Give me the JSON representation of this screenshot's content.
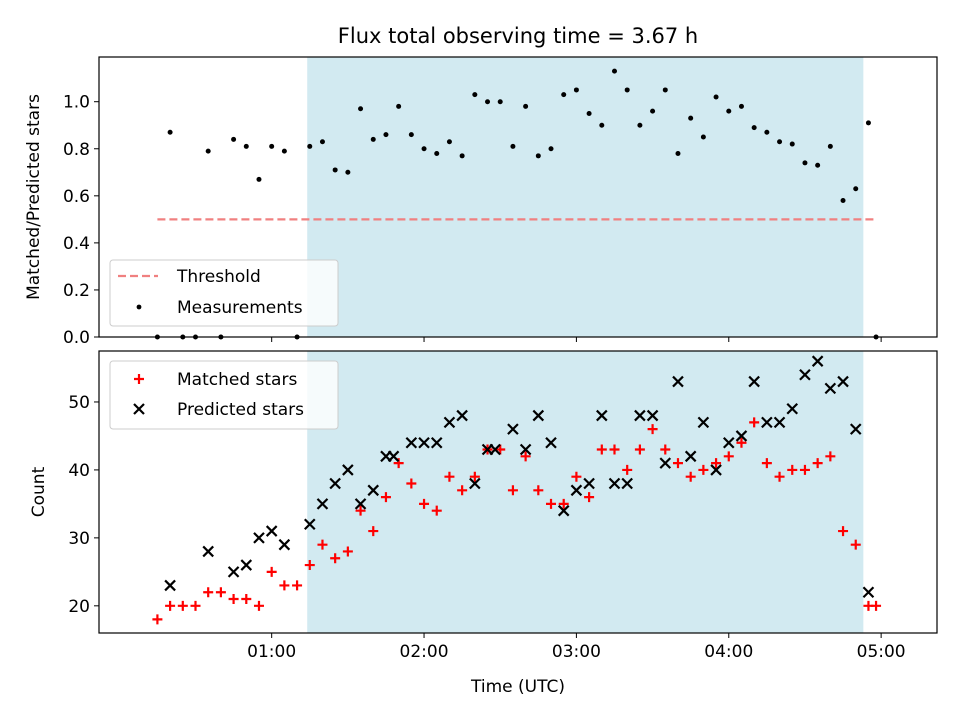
{
  "title": "Flux total observing time = 3.67 h",
  "colors": {
    "shade": "#add8e6",
    "threshold": "#f08080",
    "matched": "#ff0000",
    "predicted": "#000000"
  },
  "chart_data": [
    {
      "type": "scatter",
      "ylabel": "Matched/Predicted stars",
      "ylim": [
        0,
        1.19
      ],
      "yticks": [
        "0.0",
        "0.2",
        "0.4",
        "0.6",
        "0.8",
        "1.0"
      ],
      "legend": {
        "placement": "lower-left",
        "entries": [
          "Threshold",
          "Measurements"
        ]
      },
      "threshold": {
        "name": "Threshold",
        "value": 0.5,
        "x_range": [
          "00:15",
          "04:57"
        ]
      },
      "observing_window": [
        "01:14",
        "04:53"
      ],
      "series": [
        {
          "name": "Measurements",
          "x": [
            "00:15",
            "00:20",
            "00:25",
            "00:30",
            "00:35",
            "00:40",
            "00:45",
            "00:50",
            "00:55",
            "01:00",
            "01:05",
            "01:10",
            "01:15",
            "01:20",
            "01:25",
            "01:30",
            "01:35",
            "01:40",
            "01:45",
            "01:50",
            "01:55",
            "02:00",
            "02:05",
            "02:10",
            "02:15",
            "02:20",
            "02:25",
            "02:30",
            "02:35",
            "02:40",
            "02:45",
            "02:50",
            "02:55",
            "03:00",
            "03:05",
            "03:10",
            "03:15",
            "03:20",
            "03:25",
            "03:30",
            "03:35",
            "03:40",
            "03:45",
            "03:50",
            "03:55",
            "04:00",
            "04:05",
            "04:10",
            "04:15",
            "04:20",
            "04:25",
            "04:30",
            "04:35",
            "04:40",
            "04:45",
            "04:50",
            "04:55",
            "04:58"
          ],
          "y": [
            0.0,
            0.87,
            0.0,
            0.0,
            0.79,
            0.0,
            0.84,
            0.81,
            0.67,
            0.81,
            0.79,
            0.0,
            0.81,
            0.83,
            0.71,
            0.7,
            0.97,
            0.84,
            0.86,
            0.98,
            0.86,
            0.8,
            0.78,
            0.83,
            0.77,
            1.03,
            1.0,
            1.0,
            0.81,
            0.98,
            0.77,
            0.8,
            1.03,
            1.05,
            0.95,
            0.9,
            1.13,
            1.05,
            0.9,
            0.96,
            1.05,
            0.78,
            0.93,
            0.85,
            1.02,
            0.96,
            0.98,
            0.89,
            0.87,
            0.83,
            0.82,
            0.74,
            0.73,
            0.81,
            0.58,
            0.63,
            0.91,
            0.0
          ]
        }
      ]
    },
    {
      "type": "scatter",
      "xlabel": "Time (UTC)",
      "ylabel": "Count",
      "ylim": [
        16,
        57.5
      ],
      "yticks": [
        "20",
        "30",
        "40",
        "50"
      ],
      "xticks": [
        "01:00",
        "02:00",
        "03:00",
        "04:00",
        "05:00"
      ],
      "xlim": [
        "23:52",
        "05:22"
      ],
      "legend": {
        "placement": "upper-left",
        "entries": [
          "Matched stars",
          "Predicted stars"
        ]
      },
      "observing_window": [
        "01:14",
        "04:53"
      ],
      "series": [
        {
          "name": "Matched stars",
          "x": [
            "00:15",
            "00:20",
            "00:25",
            "00:30",
            "00:35",
            "00:40",
            "00:45",
            "00:50",
            "00:55",
            "01:00",
            "01:05",
            "01:10",
            "01:15",
            "01:20",
            "01:25",
            "01:30",
            "01:35",
            "01:40",
            "01:45",
            "01:50",
            "01:55",
            "02:00",
            "02:05",
            "02:10",
            "02:15",
            "02:20",
            "02:25",
            "02:30",
            "02:35",
            "02:40",
            "02:45",
            "02:50",
            "02:55",
            "03:00",
            "03:05",
            "03:10",
            "03:15",
            "03:20",
            "03:25",
            "03:30",
            "03:35",
            "03:40",
            "03:45",
            "03:50",
            "03:55",
            "04:00",
            "04:05",
            "04:10",
            "04:15",
            "04:20",
            "04:25",
            "04:30",
            "04:35",
            "04:40",
            "04:45",
            "04:50",
            "04:55",
            "04:58"
          ],
          "y": [
            18,
            20,
            20,
            20,
            22,
            22,
            21,
            21,
            20,
            25,
            23,
            23,
            26,
            29,
            27,
            28,
            34,
            31,
            36,
            41,
            38,
            35,
            34,
            39,
            37,
            39,
            43,
            43,
            37,
            42,
            37,
            35,
            35,
            39,
            36,
            43,
            43,
            40,
            43,
            46,
            43,
            41,
            39,
            40,
            41,
            42,
            44,
            47,
            41,
            39,
            40,
            40,
            41,
            42,
            31,
            29,
            20,
            20
          ]
        },
        {
          "name": "Predicted stars",
          "x": [
            "00:20",
            "00:35",
            "00:45",
            "00:50",
            "00:55",
            "01:00",
            "01:05",
            "01:15",
            "01:20",
            "01:25",
            "01:30",
            "01:35",
            "01:40",
            "01:45",
            "01:48",
            "01:55",
            "02:00",
            "02:05",
            "02:10",
            "02:15",
            "02:20",
            "02:25",
            "02:28",
            "02:35",
            "02:40",
            "02:45",
            "02:50",
            "02:55",
            "03:00",
            "03:05",
            "03:10",
            "03:15",
            "03:20",
            "03:25",
            "03:30",
            "03:35",
            "03:40",
            "03:45",
            "03:50",
            "03:55",
            "04:00",
            "04:05",
            "04:10",
            "04:15",
            "04:20",
            "04:25",
            "04:30",
            "04:35",
            "04:40",
            "04:45",
            "04:50",
            "04:55"
          ],
          "y": [
            23,
            28,
            25,
            26,
            30,
            31,
            29,
            32,
            35,
            38,
            40,
            35,
            37,
            42,
            42,
            44,
            44,
            44,
            47,
            48,
            38,
            43,
            43,
            46,
            43,
            48,
            44,
            34,
            37,
            38,
            48,
            38,
            38,
            48,
            48,
            41,
            53,
            42,
            47,
            40,
            44,
            45,
            53,
            47,
            47,
            49,
            54,
            56,
            52,
            53,
            46,
            22
          ]
        }
      ]
    }
  ]
}
